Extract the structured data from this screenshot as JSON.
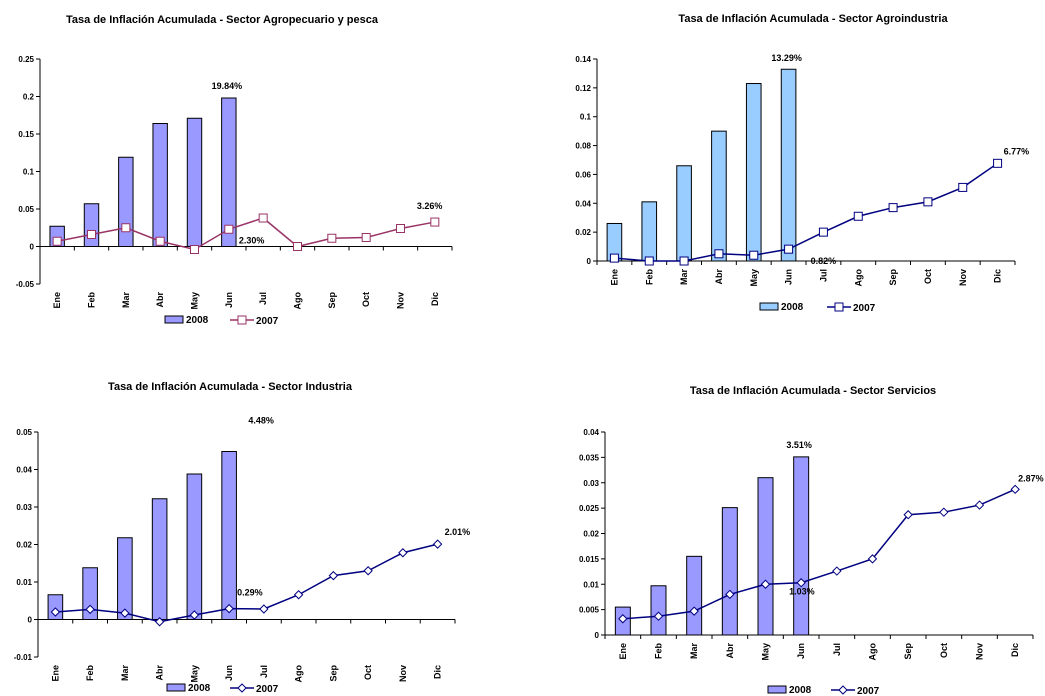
{
  "chart_data": [
    {
      "type": "bar",
      "title": "Tasa de Inflación Acumulada - Sector Agropecuario y pesca",
      "categories": [
        "Ene",
        "Feb",
        "Mar",
        "Abr",
        "May",
        "Jun",
        "Jul",
        "Ago",
        "Sep",
        "Oct",
        "Nov",
        "Dic"
      ],
      "ylim": [
        -0.05,
        0.25
      ],
      "yticks": [
        "0.25",
        "0.2",
        "0.15",
        "0.1",
        "0.05",
        "0",
        "-0.05"
      ],
      "grid": false,
      "legend_position": "bottom",
      "series": [
        {
          "name": "2008",
          "type": "bar",
          "color": "#9999ff",
          "values": [
            0.027,
            0.057,
            0.119,
            0.164,
            0.171,
            0.198,
            null,
            null,
            null,
            null,
            null,
            null
          ]
        },
        {
          "name": "2007",
          "type": "line",
          "color": "#993366",
          "marker": "square",
          "values": [
            0.007,
            0.016,
            0.025,
            0.007,
            -0.004,
            0.023,
            0.038,
            0.0,
            0.011,
            0.012,
            0.024,
            0.0326
          ]
        }
      ],
      "annotations": [
        "19.84%",
        "2.30%",
        "3.26%"
      ]
    },
    {
      "type": "bar",
      "title": "Tasa de Inflación Acumulada - Sector Agroindustria",
      "categories": [
        "Ene",
        "Feb",
        "Mar",
        "Abr",
        "May",
        "Jun",
        "Jul",
        "Ago",
        "Sep",
        "Oct",
        "Nov",
        "Dic"
      ],
      "ylim": [
        0,
        0.14
      ],
      "yticks": [
        "0.14",
        "0.12",
        "0.1",
        "0.08",
        "0.06",
        "0.04",
        "0.02",
        "0"
      ],
      "grid": false,
      "legend_position": "bottom",
      "series": [
        {
          "name": "2008",
          "type": "bar",
          "color": "#99ccff",
          "values": [
            0.026,
            0.041,
            0.066,
            0.09,
            0.123,
            0.1329,
            null,
            null,
            null,
            null,
            null,
            null
          ]
        },
        {
          "name": "2007",
          "type": "line",
          "color": "#000080",
          "marker": "square",
          "values": [
            0.002,
            0.0,
            0.0,
            0.005,
            0.004,
            0.0082,
            0.02,
            0.031,
            0.037,
            0.041,
            0.051,
            0.0677
          ]
        }
      ],
      "annotations": [
        "13.29%",
        "0.82%",
        "6.77%"
      ]
    },
    {
      "type": "bar",
      "title": "Tasa de Inflación Acumulada - Sector Industria",
      "categories": [
        "Ene",
        "Feb",
        "Mar",
        "Abr",
        "May",
        "Jun",
        "Jul",
        "Ago",
        "Sep",
        "Oct",
        "Nov",
        "Dic"
      ],
      "ylim": [
        -0.01,
        0.05
      ],
      "yticks": [
        "0.05",
        "0.04",
        "0.03",
        "0.02",
        "0.01",
        "0",
        "-0.01"
      ],
      "grid": false,
      "legend_position": "bottom",
      "series": [
        {
          "name": "2008",
          "type": "bar",
          "color": "#9999ff",
          "values": [
            0.0066,
            0.0138,
            0.0218,
            0.0322,
            0.0388,
            0.0448,
            null,
            null,
            null,
            null,
            null,
            null
          ]
        },
        {
          "name": "2007",
          "type": "line",
          "color": "#000080",
          "marker": "diamond",
          "values": [
            0.002,
            0.0027,
            0.0017,
            -0.0006,
            0.0012,
            0.0029,
            0.0028,
            0.0066,
            0.0117,
            0.013,
            0.0178,
            0.0201
          ]
        }
      ],
      "annotations": [
        "4.48%",
        "0.29%",
        "2.01%"
      ]
    },
    {
      "type": "bar",
      "title": "Tasa de Inflación Acumulada - Sector Servicios",
      "categories": [
        "Ene",
        "Feb",
        "Mar",
        "Abr",
        "May",
        "Jun",
        "Jul",
        "Ago",
        "Sep",
        "Oct",
        "Nov",
        "Dic"
      ],
      "ylim": [
        0,
        0.04
      ],
      "yticks": [
        "0.04",
        "0.035",
        "0.03",
        "0.025",
        "0.02",
        "0.015",
        "0.01",
        "0.005",
        "0"
      ],
      "grid": false,
      "legend_position": "bottom",
      "series": [
        {
          "name": "2008",
          "type": "bar",
          "color": "#9999ff",
          "values": [
            0.0055,
            0.0097,
            0.0155,
            0.0251,
            0.031,
            0.0351,
            null,
            null,
            null,
            null,
            null,
            null
          ]
        },
        {
          "name": "2007",
          "type": "line",
          "color": "#000080",
          "marker": "diamond",
          "values": [
            0.0032,
            0.0037,
            0.0047,
            0.008,
            0.01,
            0.0103,
            0.0126,
            0.015,
            0.0237,
            0.0242,
            0.0256,
            0.0287
          ]
        }
      ],
      "annotations": [
        "3.51%",
        "1.03%",
        "2.87%"
      ]
    }
  ]
}
